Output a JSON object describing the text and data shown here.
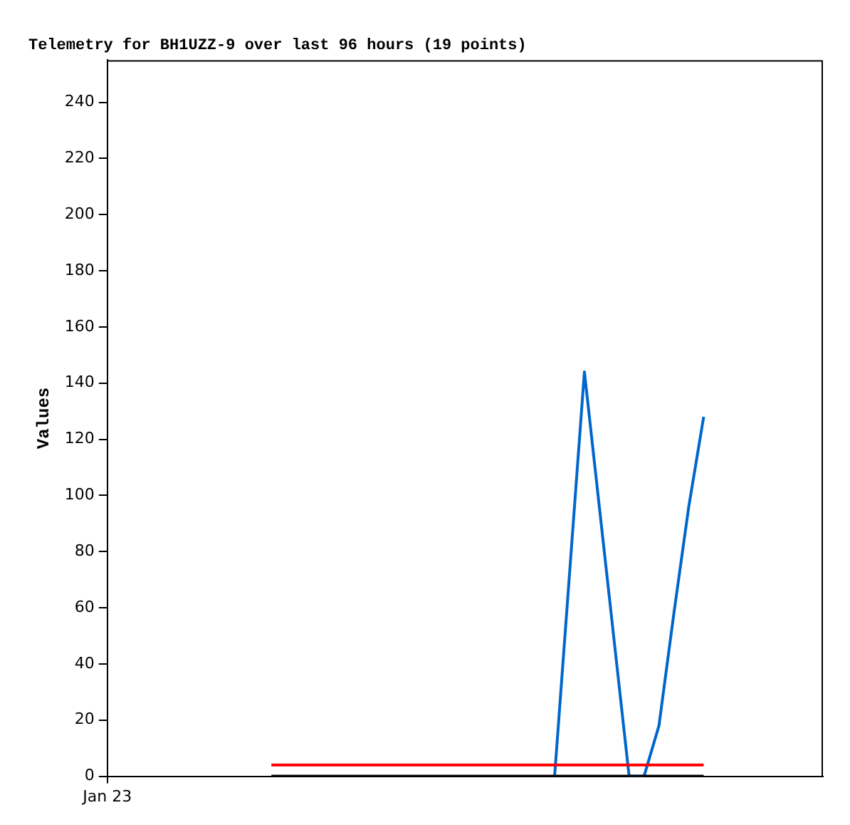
{
  "chart_data": {
    "type": "line",
    "title": "Telemetry for BH1UZZ-9 over last 96 hours (19 points)",
    "ylabel": "Values",
    "categories": [
      "Jan 23",
      null,
      null,
      null,
      null,
      null,
      null,
      null,
      null,
      null,
      null,
      null,
      null,
      null,
      null,
      null,
      null,
      null,
      null,
      null,
      null,
      null,
      null,
      null,
      null,
      null,
      null,
      null,
      null,
      null,
      null,
      null,
      null,
      null,
      null,
      null,
      null,
      null,
      null,
      null,
      null,
      null,
      null,
      null,
      null,
      null,
      null,
      null,
      null
    ],
    "ylim": [
      0,
      255
    ],
    "yticks": [
      0,
      20,
      40,
      60,
      80,
      100,
      120,
      140,
      160,
      180,
      200,
      220,
      240
    ],
    "grid": false,
    "legend": false,
    "marker": "none",
    "line_style": "solid",
    "series": [
      {
        "color": "#000000",
        "values": [
          null,
          null,
          null,
          null,
          null,
          null,
          null,
          null,
          null,
          null,
          null,
          0,
          0,
          0,
          0,
          0,
          0,
          0,
          0,
          0,
          0,
          0,
          0,
          0,
          0,
          0,
          0,
          0,
          0,
          0,
          0,
          0,
          0,
          0,
          0,
          0,
          0,
          0,
          0,
          0,
          0,
          null,
          null,
          null,
          null,
          null,
          null,
          null,
          null
        ]
      },
      {
        "color": "#ff0000",
        "values": [
          null,
          null,
          null,
          null,
          null,
          null,
          null,
          null,
          null,
          null,
          null,
          4,
          4,
          4,
          4,
          4,
          4,
          4,
          4,
          4,
          4,
          4,
          4,
          4,
          4,
          4,
          4,
          4,
          4,
          4,
          4,
          4,
          4,
          4,
          4,
          4,
          4,
          4,
          4,
          4,
          4,
          null,
          null,
          null,
          null,
          null,
          null,
          null,
          null
        ]
      },
      {
        "color": "#0066cc",
        "values": [
          null,
          null,
          null,
          null,
          null,
          null,
          null,
          null,
          null,
          null,
          null,
          null,
          null,
          null,
          null,
          null,
          null,
          null,
          null,
          null,
          null,
          null,
          null,
          null,
          null,
          null,
          null,
          null,
          null,
          null,
          0,
          72,
          144,
          96,
          48,
          0,
          0,
          18,
          58,
          96,
          128,
          null,
          null,
          null,
          null,
          null,
          null,
          null,
          null
        ]
      }
    ]
  }
}
